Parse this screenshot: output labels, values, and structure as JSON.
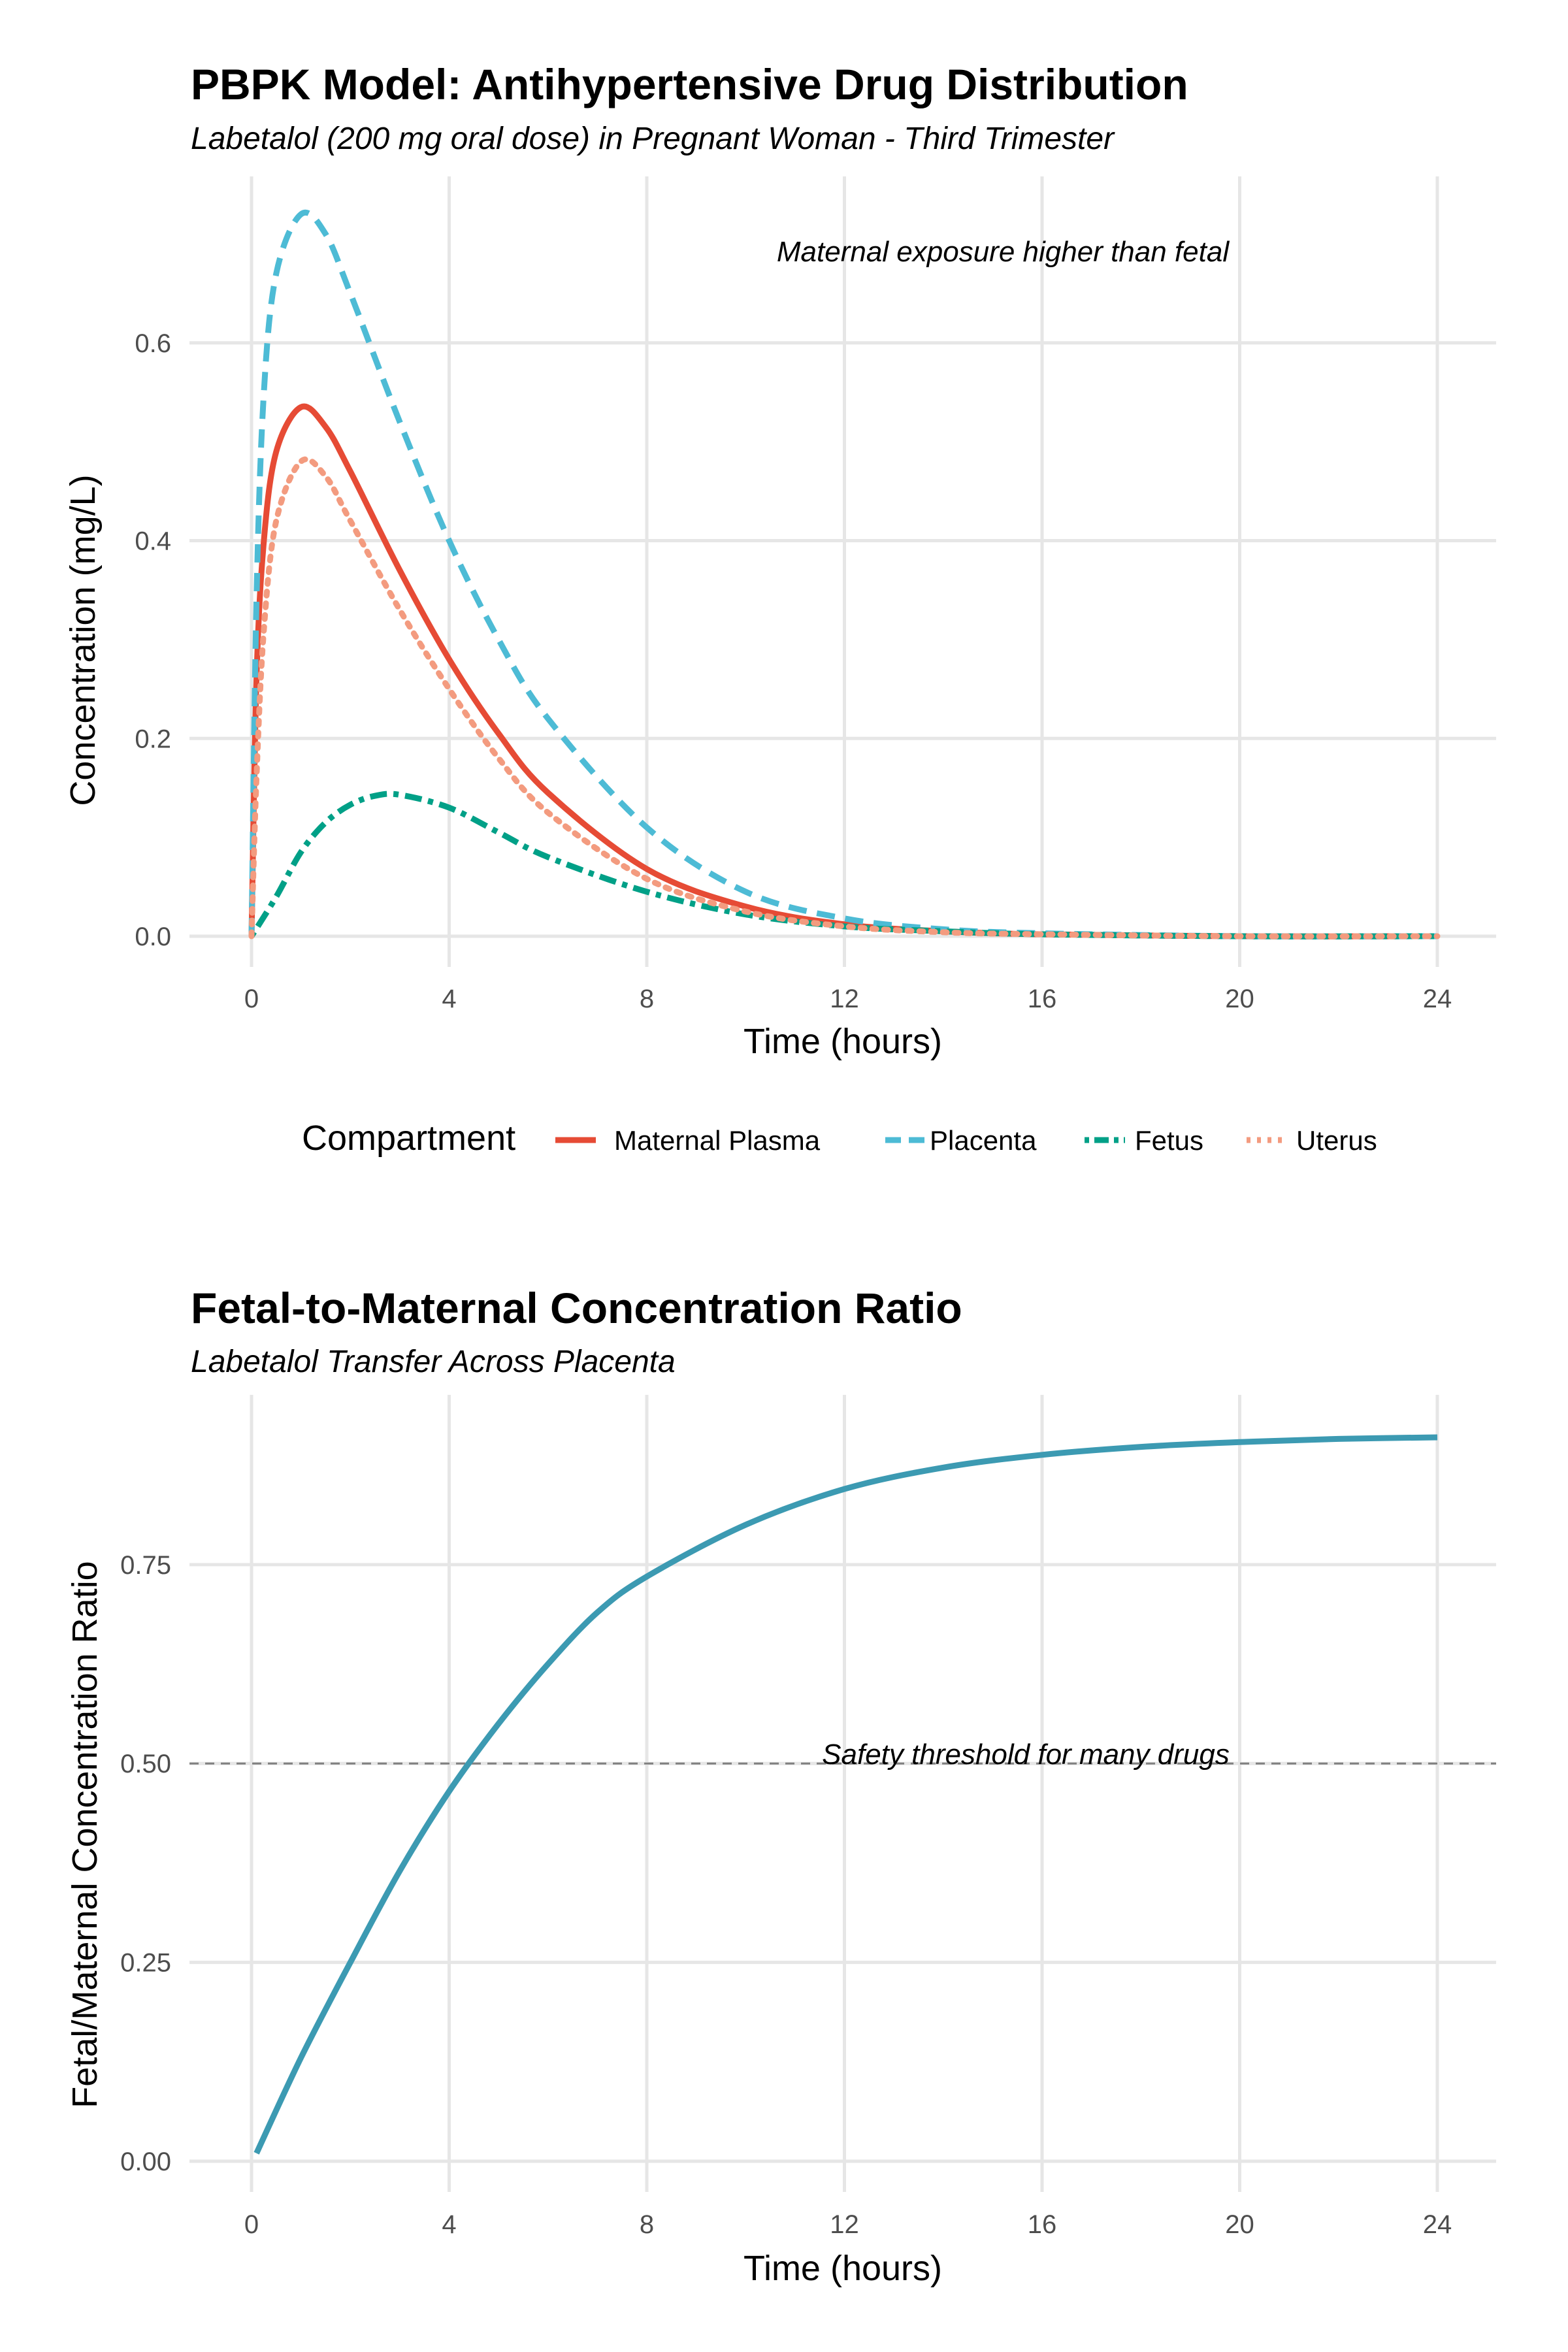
{
  "chart_data": [
    {
      "type": "line",
      "title": "PBPK Model: Antihypertensive Drug Distribution",
      "subtitle": "Labetalol (200 mg oral dose) in Pregnant Woman - Third Trimester",
      "xlabel": "Time (hours)",
      "ylabel": "Concentration (mg/L)",
      "xlim": [
        0,
        24
      ],
      "ylim": [
        0,
        0.73
      ],
      "x_ticks": [
        0,
        4,
        8,
        12,
        16,
        20,
        24
      ],
      "y_ticks": [
        0.0,
        0.2,
        0.4,
        0.6
      ],
      "x_tick_labels": [
        "0",
        "4",
        "8",
        "12",
        "16",
        "20",
        "24"
      ],
      "y_tick_labels": [
        "0.0",
        "0.2",
        "0.4",
        "0.6"
      ],
      "grid": true,
      "legend": {
        "title": "Compartment",
        "placement": "bottom"
      },
      "annotations": [
        {
          "text": "Maternal exposure higher than fetal",
          "x": 15,
          "y": 0.69
        }
      ],
      "series": [
        {
          "name": "Maternal Plasma",
          "color": "#E64B35",
          "dash": "solid",
          "x": [
            0,
            0.1,
            0.25,
            0.5,
            1,
            1.5,
            2,
            3,
            4,
            5,
            6,
            8,
            10,
            12,
            14,
            16,
            20,
            24
          ],
          "y": [
            0,
            0.26,
            0.4,
            0.49,
            0.535,
            0.515,
            0.47,
            0.37,
            0.28,
            0.205,
            0.145,
            0.068,
            0.03,
            0.012,
            0.005,
            0.002,
            0.0,
            0.0
          ]
        },
        {
          "name": "Placenta",
          "color": "#4DBBD5",
          "dash": "dashed",
          "x": [
            0,
            0.1,
            0.25,
            0.5,
            1,
            1.5,
            2,
            3,
            4,
            5,
            6,
            8,
            10,
            12,
            14,
            16,
            20,
            24
          ],
          "y": [
            0,
            0.34,
            0.55,
            0.67,
            0.73,
            0.71,
            0.65,
            0.52,
            0.4,
            0.3,
            0.22,
            0.11,
            0.045,
            0.018,
            0.007,
            0.003,
            0.0,
            0.0
          ]
        },
        {
          "name": "Fetus",
          "color": "#00A087",
          "dash": "dotdash",
          "x": [
            0,
            0.5,
            1,
            1.5,
            2,
            2.5,
            3,
            4,
            5,
            6,
            8,
            10,
            12,
            14,
            16,
            20,
            24
          ],
          "y": [
            0,
            0.04,
            0.085,
            0.115,
            0.133,
            0.142,
            0.143,
            0.13,
            0.105,
            0.08,
            0.045,
            0.022,
            0.01,
            0.005,
            0.002,
            0.0,
            0.0
          ]
        },
        {
          "name": "Uterus",
          "color": "#F39B7F",
          "dash": "dotted",
          "x": [
            0,
            0.1,
            0.25,
            0.5,
            1,
            1.5,
            2,
            3,
            4,
            5,
            6,
            8,
            10,
            12,
            14,
            16,
            20,
            24
          ],
          "y": [
            0,
            0.16,
            0.31,
            0.42,
            0.48,
            0.465,
            0.42,
            0.33,
            0.25,
            0.18,
            0.125,
            0.058,
            0.025,
            0.01,
            0.004,
            0.002,
            0.0,
            0.0
          ]
        }
      ]
    },
    {
      "type": "line",
      "title": "Fetal-to-Maternal Concentration Ratio",
      "subtitle": "Labetalol Transfer Across Placenta",
      "xlabel": "Time (hours)",
      "ylabel": "Fetal/Maternal Concentration Ratio",
      "xlim": [
        0,
        24
      ],
      "ylim": [
        0,
        0.92
      ],
      "x_ticks": [
        0,
        4,
        8,
        12,
        16,
        20,
        24
      ],
      "y_ticks": [
        0.0,
        0.25,
        0.5,
        0.75
      ],
      "x_tick_labels": [
        "0",
        "4",
        "8",
        "12",
        "16",
        "20",
        "24"
      ],
      "y_tick_labels": [
        "0.00",
        "0.25",
        "0.50",
        "0.75"
      ],
      "grid": true,
      "reference_line": {
        "y": 0.5,
        "style": "dashed",
        "color": "#808080"
      },
      "annotations": [
        {
          "text": "Safety threshold for many drugs",
          "x": 15.5,
          "y": 0.53
        }
      ],
      "series": [
        {
          "name": "",
          "color": "#3C9AB2",
          "dash": "solid",
          "x": [
            0.1,
            1,
            2,
            3,
            4,
            5,
            6,
            7,
            8,
            10,
            12,
            14,
            16,
            18,
            20,
            22,
            24
          ],
          "y": [
            0.01,
            0.13,
            0.25,
            0.365,
            0.465,
            0.55,
            0.625,
            0.69,
            0.735,
            0.8,
            0.845,
            0.872,
            0.888,
            0.898,
            0.904,
            0.908,
            0.91
          ]
        }
      ]
    }
  ]
}
